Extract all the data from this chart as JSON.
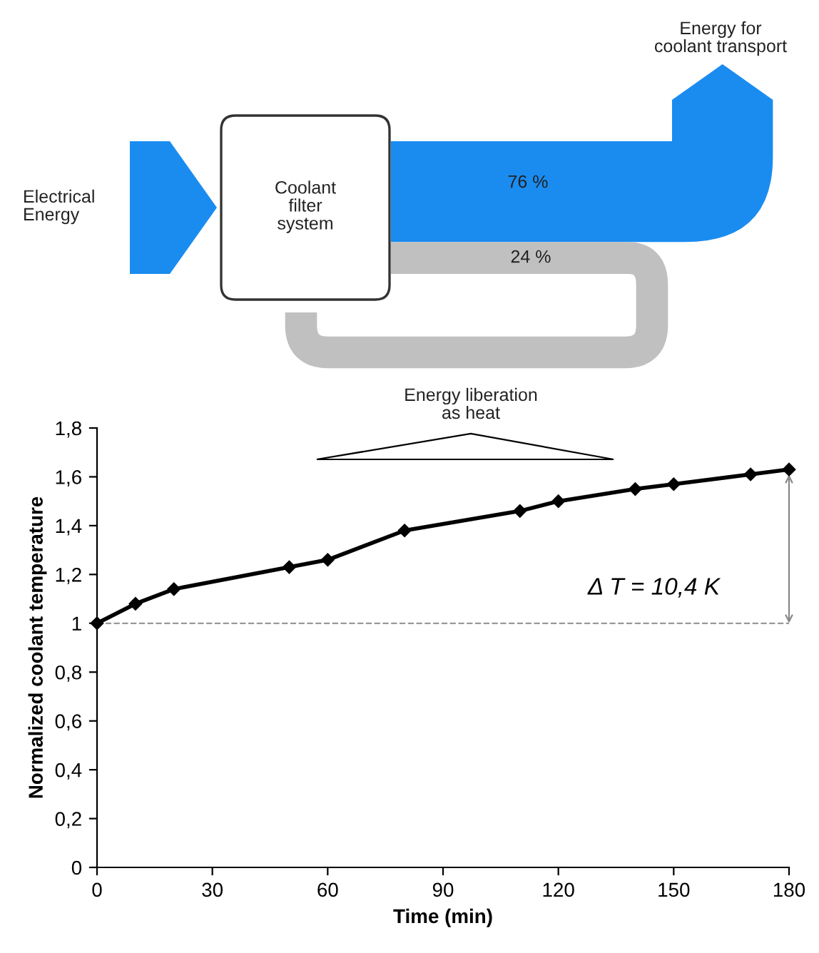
{
  "chart_data": [
    {
      "type": "other",
      "categories": [
        null,
        null
      ],
      "values": [
        76,
        24
      ],
      "colors": [
        "#1a8cf0",
        "#c0c0c0"
      ],
      "value_labels": [
        "76 %",
        "24 %"
      ],
      "annotations": [
        "Electrical\nEnergy",
        "Coolant\nfilter\nsystem",
        "Energy for\ncoolant transport",
        "Energy liberation\nas heat"
      ]
    },
    {
      "type": "line",
      "xlabel": "Time (min)",
      "ylabel": "Normalized coolant temperature",
      "x": [
        0,
        10,
        20,
        50,
        60,
        80,
        110,
        120,
        140,
        150,
        170,
        180
      ],
      "series": [
        {
          "color": "#000000",
          "values": [
            1.0,
            1.08,
            1.14,
            1.23,
            1.26,
            1.38,
            1.46,
            1.5,
            1.55,
            1.57,
            1.61,
            1.63
          ]
        }
      ],
      "xlim": [
        0,
        180
      ],
      "xticks": [
        0,
        30,
        60,
        90,
        120,
        150,
        180
      ],
      "ylim": [
        0,
        1.8
      ],
      "yticks": [
        0,
        {
          "value": 0.2,
          "label": "0,2"
        },
        {
          "value": 0.4,
          "label": "0,4"
        },
        {
          "value": 0.6,
          "label": "0,6"
        },
        {
          "value": 0.8,
          "label": "0,8"
        },
        1,
        {
          "value": 1.2,
          "label": "1,2"
        },
        {
          "value": 1.4,
          "label": "1,4"
        },
        {
          "value": 1.6,
          "label": "1,6"
        },
        {
          "value": 1.8,
          "label": "1,8"
        }
      ],
      "ref_lines": [
        {
          "axis": "y",
          "value": 1,
          "color": "#999999",
          "line_style": "dashed"
        }
      ],
      "annotations": [
        "Δ T = 10,4 K"
      ],
      "marker": "diamond",
      "line_style": "solid",
      "grid": false,
      "legend": false
    }
  ]
}
